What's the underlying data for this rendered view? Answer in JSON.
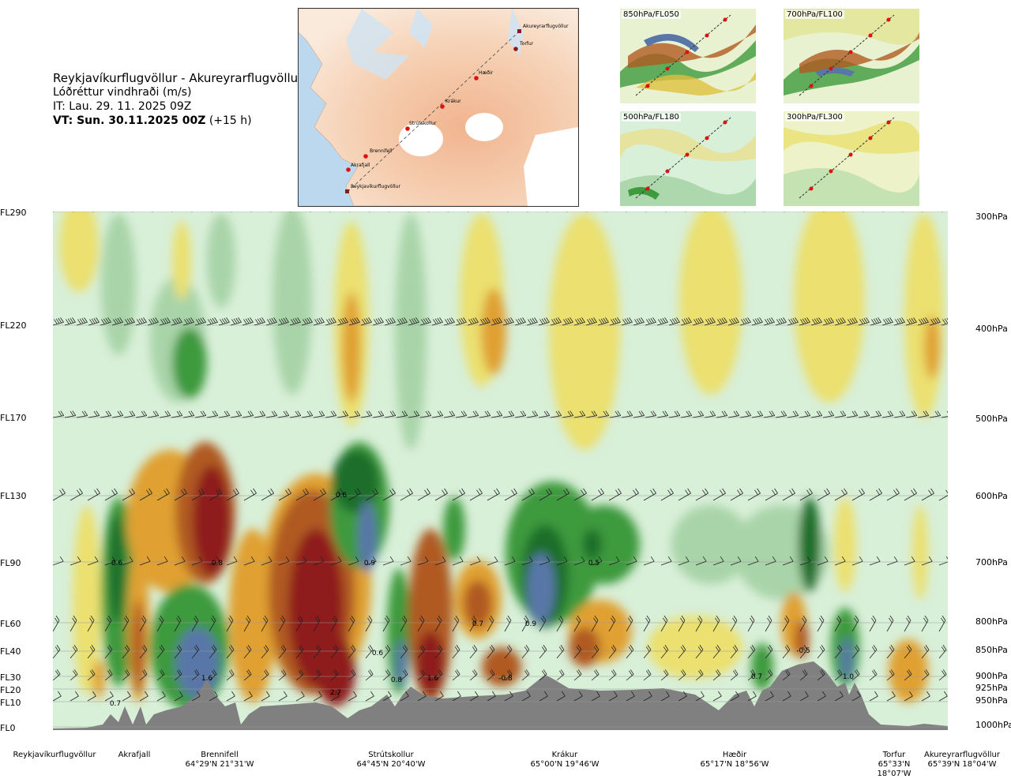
{
  "title": {
    "route": "Reykjavíkurflugvöllur - Akureyrarflugvöllur",
    "variable": "Lóðréttur vindhraði (m/s)",
    "it": "IT: Lau. 29. 11. 2025 09Z",
    "vt_bold": "VT: Sun. 30.11.2025 00Z",
    "vt_offset": " (+15 h)"
  },
  "map": {
    "points": [
      {
        "name": "Akureyrarflugvöllur"
      },
      {
        "name": "Torfur"
      },
      {
        "name": "Hæðir"
      },
      {
        "name": "Krákur"
      },
      {
        "name": "Strútskollur"
      },
      {
        "name": "Brennifell"
      },
      {
        "name": "Akrafjall"
      },
      {
        "name": "Reykjavíkurflugvöllur"
      }
    ]
  },
  "thumbnails": [
    {
      "label": "850hPa/FL050"
    },
    {
      "label": "700hPa/FL100"
    },
    {
      "label": "500hPa/FL180"
    },
    {
      "label": "300hPa/FL300"
    }
  ],
  "chart_data": {
    "type": "heatmap",
    "title": "Lóðréttur vindhraði (m/s)",
    "left_axis": [
      "FL290",
      "FL220",
      "FL170",
      "FL130",
      "FL90",
      "FL60",
      "FL40",
      "FL30",
      "FL20",
      "FL10",
      "FL0"
    ],
    "right_axis": [
      "300hPa",
      "400hPa",
      "500hPa",
      "600hPa",
      "700hPa",
      "800hPa",
      "850hPa",
      "900hPa",
      "925hPa",
      "950hPa",
      "1000hPa"
    ],
    "waypoints": [
      {
        "name": "Reykjavíkurflugvöllur",
        "coord": ""
      },
      {
        "name": "Akrafjall",
        "coord": ""
      },
      {
        "name": "Brennifell",
        "coord": "64°29'N 21°31'W"
      },
      {
        "name": "Strútskollur",
        "coord": "64°45'N 20°40'W"
      },
      {
        "name": "Krákur",
        "coord": "65°00'N 19°46'W"
      },
      {
        "name": "Hæðir",
        "coord": "65°17'N 18°56'W"
      },
      {
        "name": "Torfur",
        "coord": "65°33'N 18°07'W"
      },
      {
        "name": "Akureyrarflugvöllur",
        "coord": "65°39'N 18°04'W"
      }
    ],
    "contour_labels": [
      "0.6",
      "0.8",
      "0.6",
      "0.9",
      "0.5",
      "0.7",
      "0.9",
      "-0.5",
      "1.6",
      "0.8",
      "1.6",
      "-0.8",
      "0.7",
      "1.0",
      "0.7",
      "2.7",
      "0.6"
    ],
    "color_scale": {
      "strong_up": "#8e1b1b",
      "up": "#b05a20",
      "weak_up": "#e0a030",
      "slight_up": "#ebe070",
      "neutral": "#d8efd8",
      "slight_down": "#a9d4a9",
      "down": "#3d9a3d",
      "strong_down": "#1a6e2a",
      "extreme_down": "#5877a8",
      "terrain": "#808080"
    }
  }
}
